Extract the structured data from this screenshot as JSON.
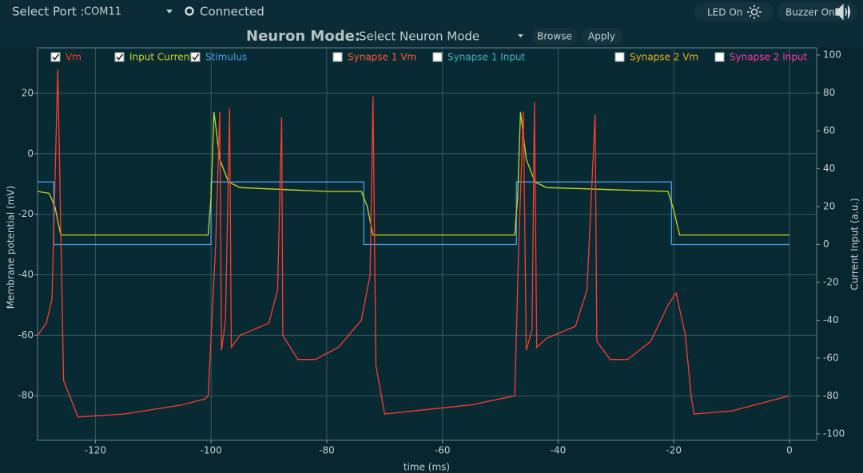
{
  "ui": {
    "port_label": "Select Port :",
    "port_value": "COM11",
    "status": "Connected",
    "led_button": "LED On",
    "buzzer_button": "Buzzer On",
    "mode_label": "Neuron Mode:",
    "mode_value": "Select Neuron Mode",
    "browse_button": "Browse",
    "apply_button": "Apply"
  },
  "chart_data": {
    "type": "line",
    "xlabel": "time (ms)",
    "ylabel": "Membrane potential (mV)",
    "y2label": "Current Input (a.u.)",
    "xlim": [
      -130,
      4.7
    ],
    "xticks": [
      -120,
      -100,
      -80,
      -60,
      -40,
      -20,
      0
    ],
    "ylim": [
      -94.7,
      35
    ],
    "yticks": [
      20,
      0,
      -20,
      -40,
      -60,
      -80
    ],
    "y2lim": [
      -103.4,
      103.8
    ],
    "y2ticks": [
      100,
      80,
      60,
      40,
      20,
      0,
      -20,
      -40,
      -60,
      -80,
      -100
    ],
    "grid": true,
    "series": [
      {
        "name": "Vm",
        "color": "#ff3b30",
        "checked": true,
        "axis": "y",
        "x": [
          -130,
          -128.5,
          -127.5,
          -126.5,
          -125.5,
          -123,
          -115,
          -105,
          -101,
          -100.5,
          -99.2,
          -98.5,
          -98.2,
          -97.5,
          -96.8,
          -96.5,
          -95,
          -90,
          -88.5,
          -87.8,
          -87.6,
          -85,
          -82,
          -78,
          -74,
          -72.5,
          -72,
          -71.5,
          -70,
          -65,
          -55,
          -47.5,
          -46.8,
          -46,
          -45.5,
          -44.5,
          -44.1,
          -43.7,
          -42,
          -37,
          -35,
          -33.6,
          -33.3,
          -31,
          -28,
          -24,
          -21,
          -19.6,
          -18,
          -17,
          -16.5,
          -10,
          0
        ],
        "values": [
          -60,
          -56,
          -48,
          28,
          -75,
          -87,
          -86,
          -83,
          -81,
          -80,
          -30,
          14,
          -65,
          -55,
          15,
          -64,
          -60,
          -56,
          -45,
          12,
          -60,
          -68,
          -68,
          -64,
          -55,
          -40,
          19,
          -70,
          -86,
          -85,
          -83,
          -80,
          -30,
          14,
          -65,
          -58,
          17,
          -64,
          -61,
          -57,
          -45,
          13,
          -62,
          -68,
          -68,
          -62,
          -50,
          -46,
          -60,
          -80,
          -86,
          -85,
          -80
        ]
      },
      {
        "name": "Input Current",
        "color": "#c8d824",
        "checked": true,
        "axis": "y2",
        "x": [
          -130,
          -128,
          -127,
          -126,
          -100.5,
          -100,
          -99.5,
          -98.5,
          -97,
          -95,
          -80,
          -74,
          -73,
          -72,
          -47.5,
          -47,
          -46.5,
          -45.5,
          -44,
          -42,
          -21,
          -20,
          -19,
          0
        ],
        "values": [
          28,
          27,
          20,
          5,
          5,
          25,
          70,
          45,
          33,
          30,
          28,
          28,
          20,
          5,
          5,
          25,
          70,
          45,
          33,
          30,
          28,
          18,
          5,
          5
        ]
      },
      {
        "name": "Stimulus",
        "color": "#4a9ee8",
        "checked": true,
        "axis": "y2",
        "x": [
          -130,
          -127.2,
          -127.2,
          -100,
          -100,
          -73.6,
          -73.6,
          -47.2,
          -47.2,
          -20.4,
          -20.4,
          0
        ],
        "values": [
          33,
          33,
          0,
          0,
          33,
          33,
          0,
          0,
          33,
          33,
          0,
          0
        ]
      },
      {
        "name": "Synapse 1 Vm",
        "color": "#ff5a36",
        "checked": false
      },
      {
        "name": "Synapse 1 Input",
        "color": "#3fb8c0",
        "checked": false
      },
      {
        "name": "Synapse 2 Vm",
        "color": "#e8b020",
        "checked": false
      },
      {
        "name": "Synapse 2 Input",
        "color": "#ff3aa0",
        "checked": false
      }
    ]
  }
}
